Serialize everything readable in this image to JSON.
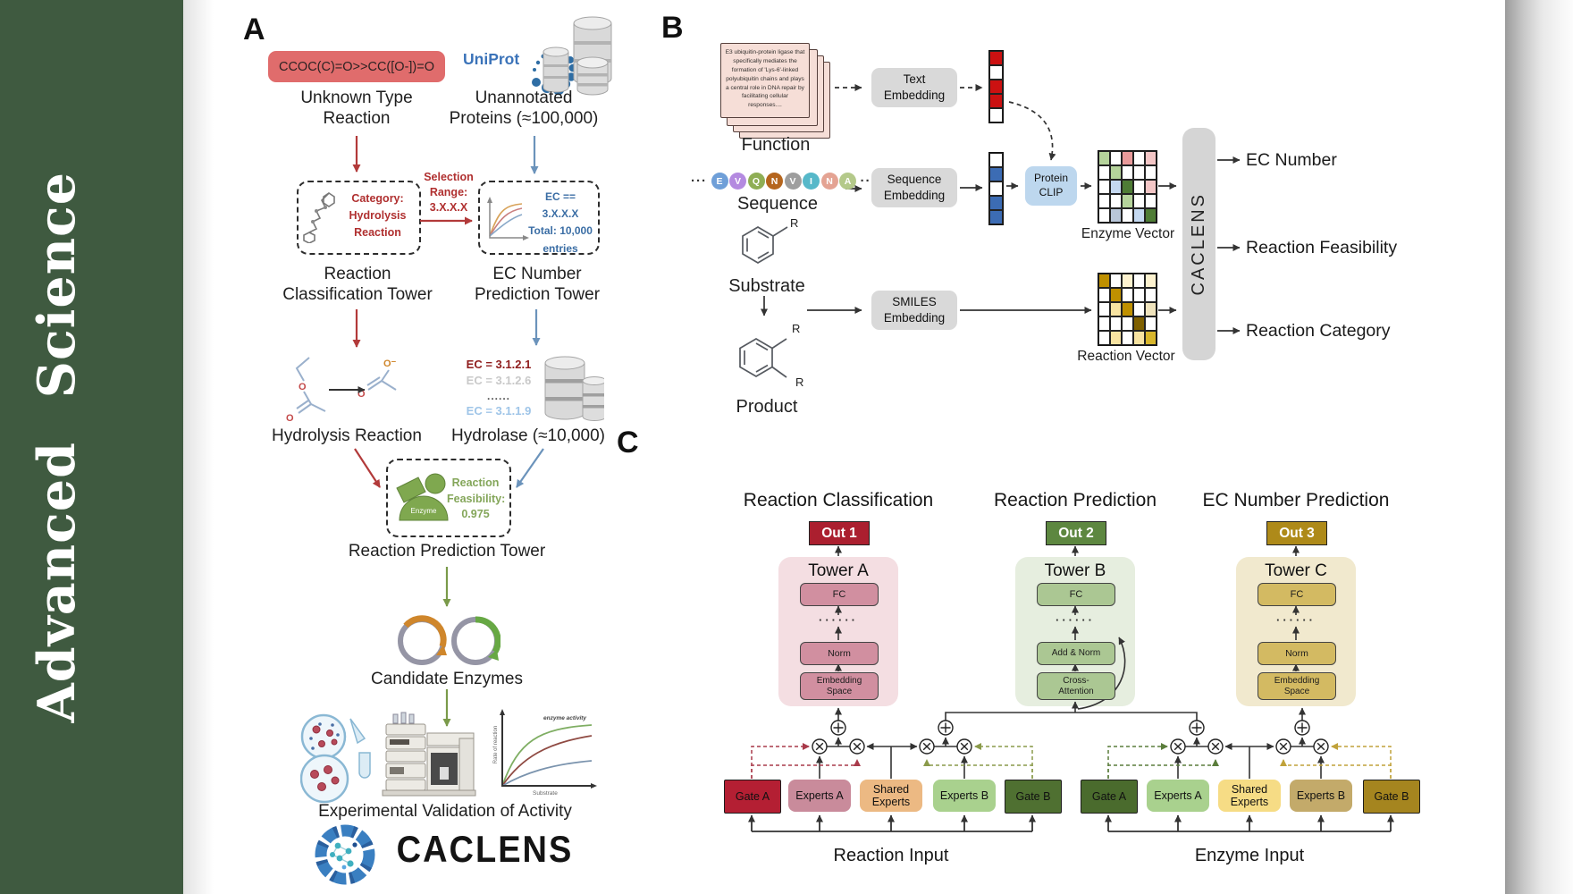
{
  "sidebar": {
    "title": "Advanced Science",
    "bg_color": "#3f5a40",
    "text_color": "#ffffff"
  },
  "panelA": {
    "label": "A",
    "smiles": "CCOC(C)=O>>CC([O-])=O",
    "smiles_bg": "#e06c6c",
    "unknown_reaction": "Unknown Type\nReaction",
    "uniprot_logo": "UniProt",
    "unannotated": "Unannotated\nProteins (≈100,000)",
    "classify_box_text": "Category:\nHydrolysis\nReaction",
    "selection_label": "Selection\nRange:\n3.X.X.X",
    "ec_box_text": "EC == 3.X.X.X\nTotal: 10,000\nentries",
    "tower_classification": "Reaction\nClassification Tower",
    "tower_ec": "EC Number\nPrediction Tower",
    "hydrolysis_reaction": "Hydrolysis Reaction",
    "ec_items": [
      "EC = 3.1.2.1",
      "EC = 3.1.2.6",
      "......",
      "EC = 3.1.1.9"
    ],
    "ec_item_colors": [
      "#8f1d1d",
      "#c9c9c9",
      "#555555",
      "#9fc5e8"
    ],
    "hydrolase": "Hydrolase (≈10,000)",
    "enzyme_icon_label": "Enzyme",
    "feasibility_text": "Reaction\nFeasibility:\n0.975",
    "tower_reaction": "Reaction Prediction Tower",
    "candidate_enzymes": "Candidate Enzymes",
    "validation": "Experimental Validation of Activity",
    "activity_plot": {
      "annotation": "enzyme activity",
      "ylabel": "Rate of reaction",
      "xlabel": "Substrate"
    },
    "wordmark": "CACLENS",
    "atoms": {
      "o": "O",
      "o_minus": "O⁻"
    }
  },
  "panelB": {
    "label": "B",
    "function_card_text": "E3 ubiquitin-protein ligase that specifically mediates the formation of 'Lys-6'-linked polyubiquitin chains and plays a central role in DNA repair by facilitating cellular responses....",
    "function_label": "Function",
    "ellipsis": "···",
    "sequence": [
      {
        "ch": "E",
        "bg": "#6f9fd8"
      },
      {
        "ch": "V",
        "bg": "#b48ae0"
      },
      {
        "ch": "Q",
        "bg": "#8fae55"
      },
      {
        "ch": "N",
        "bg": "#b5651d"
      },
      {
        "ch": "V",
        "bg": "#9e9e9e"
      },
      {
        "ch": "I",
        "bg": "#56b8c9"
      },
      {
        "ch": "N",
        "bg": "#e4a393"
      },
      {
        "ch": "A",
        "bg": "#b4c98a"
      }
    ],
    "sequence_label": "Sequence",
    "substrate_label": "Substrate",
    "product_label": "Product",
    "r_label": "R",
    "boxes": {
      "text_embedding": "Text\nEmbedding",
      "sequence_embedding": "Sequence\nEmbedding",
      "smiles_embedding": "SMILES\nEmbedding",
      "protein_clip": "Protein\nCLIP",
      "protein_clip_bg": "#bdd7ee",
      "embedding_bg": "#d9d9d9"
    },
    "text_vector": [
      "#cc1111",
      "#ffffff",
      "#cc1111",
      "#cc1111",
      "#ffffff"
    ],
    "sequence_vector": [
      "#ffffff",
      "#3c6cb4",
      "#ffffff",
      "#3c6cb4",
      "#3c6cb4"
    ],
    "enzyme_vector_label": "Enzyme Vector",
    "reaction_vector_label": "Reaction Vector",
    "enzyme_matrix": [
      [
        "#b5d39b",
        "#ffffff",
        "#e89a9a",
        "#ffffff",
        "#f3c6c6"
      ],
      [
        "#ffffff",
        "#b5d39b",
        "#ffffff",
        "#ffffff",
        "#ffffff"
      ],
      [
        "#ffffff",
        "#c5d9f1",
        "#4e7c35",
        "#ffffff",
        "#f3c6c6"
      ],
      [
        "#ffffff",
        "#ffffff",
        "#b5d39b",
        "#ffffff",
        "#ffffff"
      ],
      [
        "#ffffff",
        "#b8c6d8",
        "#ffffff",
        "#c5d9f1",
        "#4e7c35"
      ]
    ],
    "reaction_matrix": [
      [
        "#bf9000",
        "#ffffff",
        "#fdf2cf",
        "#ffffff",
        "#fdf2cf"
      ],
      [
        "#ffffff",
        "#bf9000",
        "#ffffff",
        "#ffffff",
        "#ffffff"
      ],
      [
        "#ffffff",
        "#f7e3a1",
        "#bf9000",
        "#ffffff",
        "#efe3bc"
      ],
      [
        "#ffffff",
        "#ffffff",
        "#ffffff",
        "#7f6000",
        "#ffffff"
      ],
      [
        "#ffffff",
        "#f7e3a1",
        "#ffffff",
        "#f7e3a1",
        "#d8b62c"
      ]
    ],
    "caclens_label": "CACLENS",
    "caclens_bg": "#d5d5d5",
    "outputs": [
      "EC Number",
      "Reaction Feasibility",
      "Reaction Category"
    ]
  },
  "panelC": {
    "label": "C",
    "columns": [
      {
        "header": "Reaction Classification",
        "out": "Out 1",
        "tower": "Tower A",
        "top_box": "FC",
        "dots": "······",
        "mid_box": "Norm",
        "bottom_box": "Embedding\nSpace",
        "colors": {
          "out": "#ab1f2f",
          "panel": "#f4dee2",
          "box": "#d18fa0"
        }
      },
      {
        "header": "Reaction Prediction",
        "out": "Out 2",
        "tower": "Tower B",
        "top_box": "FC",
        "dots": "······",
        "mid_box": "Add & Norm",
        "bottom_box": "Cross-\nAttention",
        "colors": {
          "out": "#5d8740",
          "panel": "#e6eedf",
          "box": "#abc793"
        }
      },
      {
        "header": "EC Number Prediction",
        "out": "Out 3",
        "tower": "Tower C",
        "top_box": "FC",
        "dots": "······",
        "mid_box": "Norm",
        "bottom_box": "Embedding\nSpace",
        "colors": {
          "out": "#ae8a19",
          "panel": "#f1e9ce",
          "box": "#d3ba62"
        }
      }
    ],
    "groups": [
      {
        "label": "Reaction Input",
        "gate_a": "Gate A",
        "experts_a": "Experts A",
        "shared": "Shared\nExperts",
        "experts_b": "Experts B",
        "gate_b": "Gate B",
        "colors": {
          "gate_a": "#b41f33",
          "experts_a": "#c98b9b",
          "shared": "#ecb983",
          "experts_b": "#a9d18e",
          "gate_b": "#4f7031"
        }
      },
      {
        "label": "Enzyme Input",
        "gate_a": "Gate A",
        "experts_a": "Experts A",
        "shared": "Shared\nExperts",
        "experts_b": "Experts B",
        "gate_b": "Gate B",
        "colors": {
          "gate_a": "#4a6b2d",
          "experts_a": "#a9d18e",
          "shared": "#f6dc85",
          "experts_b": "#c3aa6a",
          "gate_b": "#a5851f"
        }
      }
    ]
  }
}
